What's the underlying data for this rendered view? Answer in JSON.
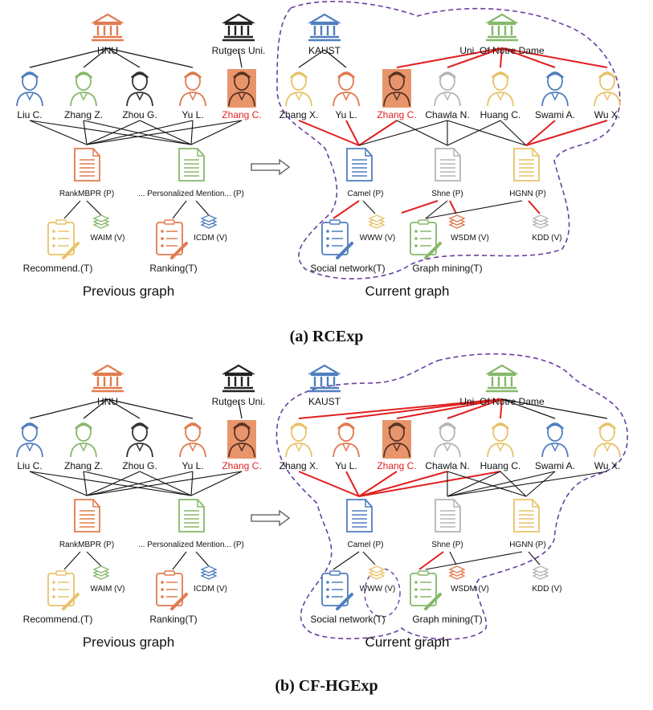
{
  "panels": [
    {
      "caption": "(a) RCExp",
      "prev_title": "Previous graph",
      "curr_title": "Current graph",
      "variant": "a"
    },
    {
      "caption": "(b) CF-HGExp",
      "prev_title": "Previous graph",
      "curr_title": "Current graph",
      "variant": "b"
    }
  ],
  "labels": {
    "hnu": "HNU",
    "rutgers": "Rutgers Uni.",
    "kaust": "KAUST",
    "notre": "Uni. Of Notre Dame",
    "liu": "Liu C.",
    "zhangz": "Zhang Z.",
    "zhou": "Zhou G.",
    "yu": "Yu L.",
    "zhangc": "Zhang C.",
    "zhangx": "Zhang X.",
    "chawla": "Chawla N.",
    "huang": "Huang C.",
    "swami": "Swami A.",
    "wu": "Wu X.",
    "rankmbpr": "RankMBPR (P)",
    "personalized": "... Personalized Mention... (P)",
    "waim": "WAIM (V)",
    "icdm": "ICDM (V)",
    "recommend": "Recommend.(T)",
    "ranking": "Ranking(T)",
    "camel": "Camel (P)",
    "shne": "Shne (P)",
    "hgnn": "HGNN (P)",
    "www": "WWW (V)",
    "wsdm": "WSDM (V)",
    "kdd": "KDD (V)",
    "social": "Social network(T)",
    "graphmining": "Graph mining(T)"
  },
  "colors": {
    "orange": "#e07b4f",
    "green": "#86b86a",
    "blue": "#4f7fbf",
    "yellow": "#e8c26a",
    "gray": "#b5b5b5",
    "highlight": "#e8956b",
    "red_edge": "#e02020",
    "outline": "#6a3fa0"
  }
}
